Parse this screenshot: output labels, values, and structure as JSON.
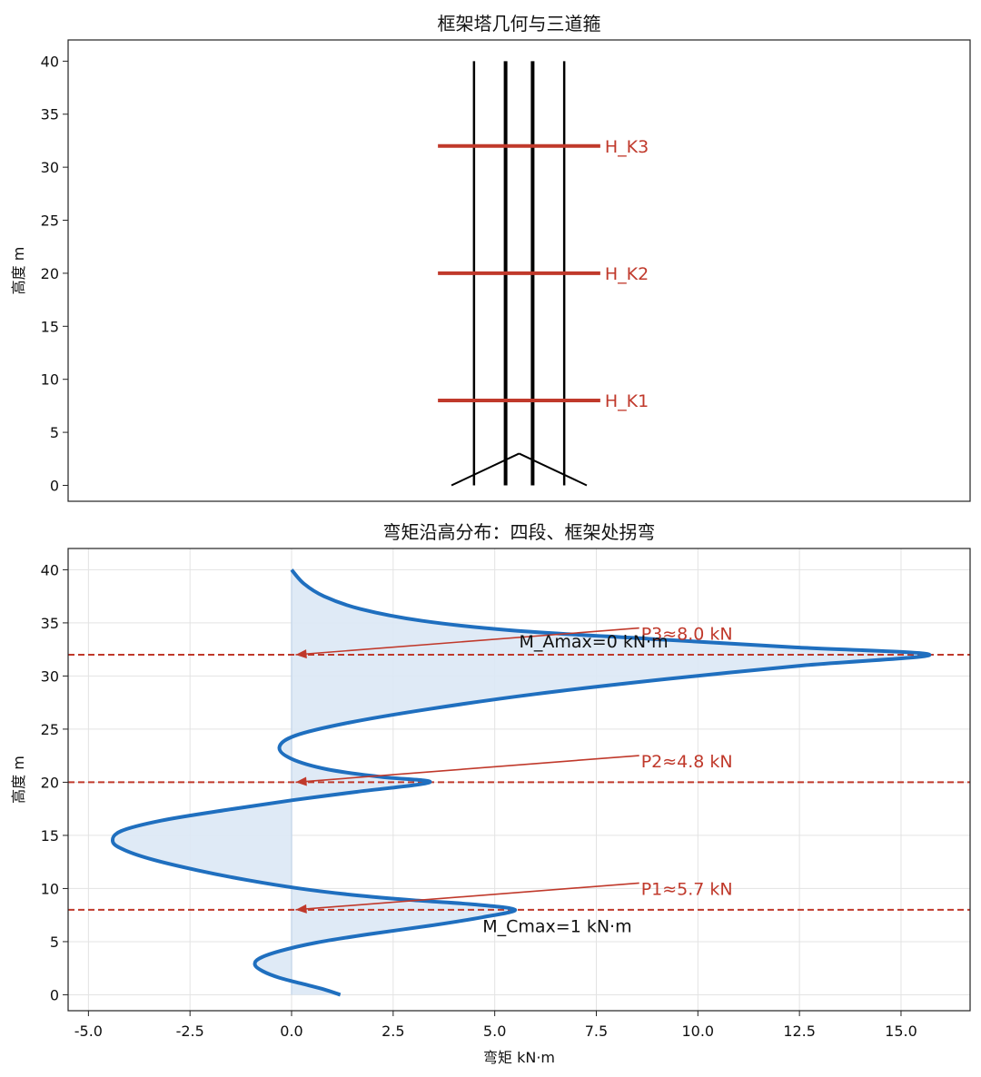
{
  "chart_data": [
    {
      "type": "line",
      "title": "框架塔几何与三道箍",
      "xlabel": "",
      "ylabel": "高度 m",
      "xlim": [
        -1,
        1
      ],
      "ylim": [
        -1.5,
        42
      ],
      "yticks": [
        0,
        5,
        10,
        15,
        20,
        25,
        30,
        35,
        40
      ],
      "ytick_labels": [
        "0",
        "5",
        "10",
        "15",
        "20",
        "25",
        "30",
        "35",
        "40"
      ],
      "grid": false,
      "tower": {
        "legs_x": [
          -0.1,
          -0.03,
          0.03,
          0.1
        ],
        "height": 40,
        "base_splay": {
          "apex": [
            0,
            3
          ],
          "feet": [
            [
              -0.15,
              0
            ],
            [
              0.15,
              0
            ]
          ]
        },
        "color": "#000000"
      },
      "hoops": [
        {
          "label": "H_K1",
          "height": 8
        },
        {
          "label": "H_K2",
          "height": 20
        },
        {
          "label": "H_K3",
          "height": 32
        }
      ],
      "hoop_color": "#c0392b"
    },
    {
      "type": "line",
      "title": "弯矩沿高分布：四段、框架处拐弯",
      "xlabel": "弯矩 kN·m",
      "ylabel": "高度 m",
      "xlim": [
        -5.5,
        16.7
      ],
      "ylim": [
        -1.5,
        42
      ],
      "xticks": [
        -5,
        -2.5,
        0,
        2.5,
        5,
        7.5,
        10,
        12.5,
        15
      ],
      "xtick_labels": [
        "-5.0",
        "-2.5",
        "0.0",
        "2.5",
        "5.0",
        "7.5",
        "10.0",
        "12.5",
        "15.0"
      ],
      "yticks": [
        0,
        5,
        10,
        15,
        20,
        25,
        30,
        35,
        40
      ],
      "ytick_labels": [
        "0",
        "5",
        "10",
        "15",
        "20",
        "25",
        "30",
        "35",
        "40"
      ],
      "grid": true,
      "series": [
        {
          "color": "#1f6fbf",
          "fill": "#dce8f5",
          "points": [
            [
              1.2,
              0
            ],
            [
              0.8,
              0.5
            ],
            [
              0.3,
              1.0
            ],
            [
              -0.3,
              1.6
            ],
            [
              -0.7,
              2.2
            ],
            [
              -0.9,
              2.8
            ],
            [
              -0.8,
              3.4
            ],
            [
              -0.3,
              4.1
            ],
            [
              0.6,
              4.9
            ],
            [
              1.9,
              5.7
            ],
            [
              3.4,
              6.5
            ],
            [
              4.7,
              7.3
            ],
            [
              5.5,
              8.0
            ],
            [
              4.5,
              8.5
            ],
            [
              3.0,
              8.9
            ],
            [
              1.5,
              9.4
            ],
            [
              0.2,
              10.0
            ],
            [
              -1.1,
              10.8
            ],
            [
              -2.3,
              11.7
            ],
            [
              -3.4,
              12.7
            ],
            [
              -4.1,
              13.6
            ],
            [
              -4.4,
              14.4
            ],
            [
              -4.2,
              15.4
            ],
            [
              -3.2,
              16.4
            ],
            [
              -1.6,
              17.4
            ],
            [
              0.0,
              18.3
            ],
            [
              1.6,
              19.1
            ],
            [
              3.4,
              20.0
            ],
            [
              2.2,
              20.5
            ],
            [
              0.9,
              21.2
            ],
            [
              0.0,
              22.2
            ],
            [
              -0.3,
              23.3
            ],
            [
              0.1,
              24.4
            ],
            [
              1.4,
              25.6
            ],
            [
              3.4,
              26.9
            ],
            [
              6.0,
              28.3
            ],
            [
              9.2,
              29.7
            ],
            [
              12.6,
              31.0
            ],
            [
              15.7,
              32.0
            ],
            [
              12.4,
              32.7
            ],
            [
              8.8,
              33.5
            ],
            [
              5.4,
              34.3
            ],
            [
              3.2,
              35.2
            ],
            [
              1.7,
              36.3
            ],
            [
              0.8,
              37.5
            ],
            [
              0.3,
              38.7
            ],
            [
              0.0,
              40.0
            ]
          ]
        }
      ],
      "hlines": [
        8,
        20,
        32
      ],
      "hline_color": "#c0392b",
      "annotations": [
        {
          "text": "P1≈5.7 kN",
          "x": 8.6,
          "y": 10,
          "arrow_to": [
            0.1,
            8
          ],
          "color": "#c0392b"
        },
        {
          "text": "P2≈4.8 kN",
          "x": 8.6,
          "y": 22,
          "arrow_to": [
            0.1,
            20
          ],
          "color": "#c0392b"
        },
        {
          "text": "P3≈8.0 kN",
          "x": 8.6,
          "y": 34,
          "arrow_to": [
            0.1,
            32
          ],
          "color": "#c0392b"
        },
        {
          "text": "M_Amax=0 kN·m",
          "x": 5.6,
          "y": 33.3,
          "color": "#111111"
        },
        {
          "text": "M_Cmax=1 kN·m",
          "x": 4.7,
          "y": 6.5,
          "color": "#111111"
        }
      ]
    }
  ]
}
